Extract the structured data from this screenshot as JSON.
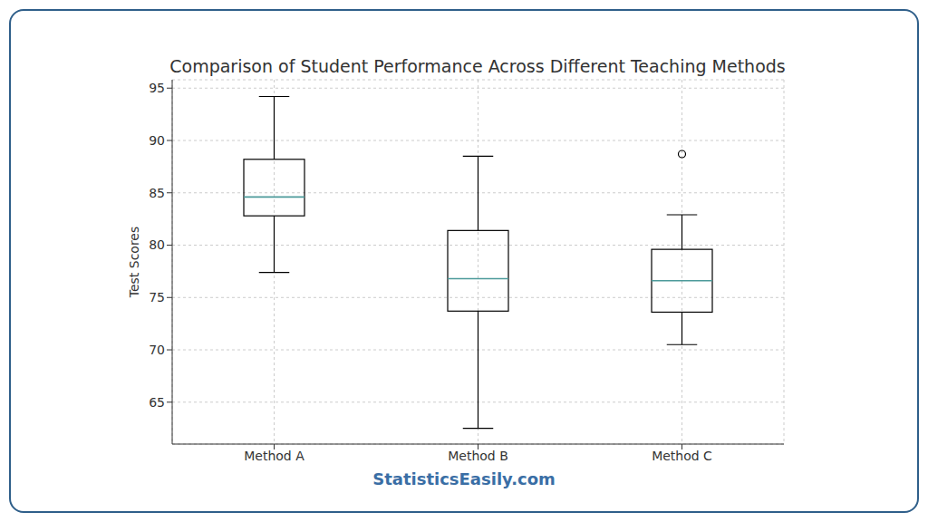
{
  "chart_data": {
    "type": "box",
    "title": "Comparison of Student Performance Across Different Teaching Methods",
    "y_label": "Test Scores",
    "watermark": "StatisticsEasily.com",
    "categories": [
      "Method A",
      "Method B",
      "Method C"
    ],
    "whisker_low": [
      77.4,
      62.5,
      70.5
    ],
    "q1": [
      82.8,
      73.7,
      73.6
    ],
    "median": [
      84.6,
      76.8,
      76.6
    ],
    "q3": [
      88.2,
      81.4,
      79.6
    ],
    "whisker_high": [
      94.2,
      88.5,
      82.9
    ],
    "outliers": [
      [],
      [],
      [
        88.7
      ]
    ],
    "color": "#4c9a9a",
    "ylim": [
      61,
      95.8
    ],
    "yticks": [
      65,
      70,
      75,
      80,
      85,
      90,
      95
    ],
    "grid": true
  }
}
